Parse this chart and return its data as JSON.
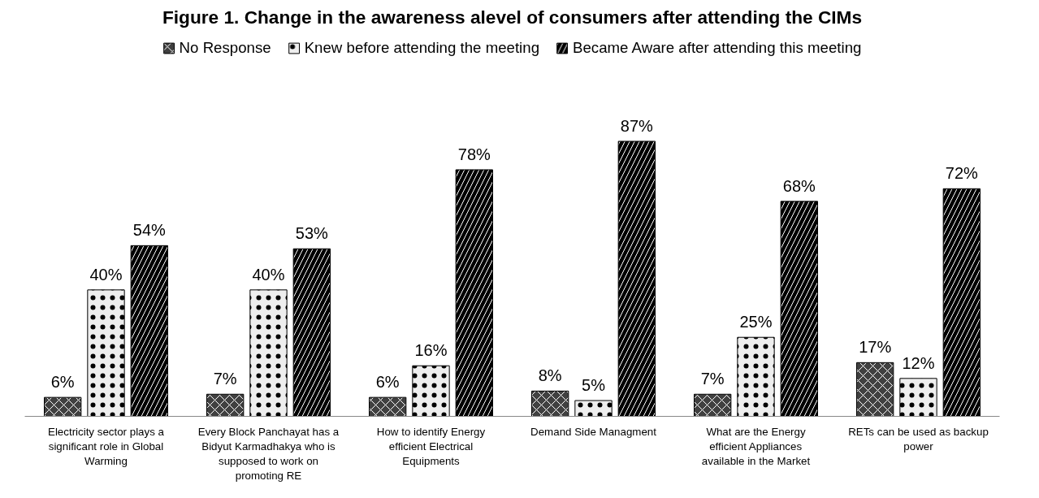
{
  "chart_data": {
    "type": "bar",
    "title": "Figure 1. Change in the awareness alevel of consumers after attending the CIMs",
    "categories": [
      "Electricity sector plays a significant role in Global Warming",
      "Every Block Panchayat has a Bidyut Karmadhakya who is supposed to work on promoting RE",
      "How to identify Energy efficient Electrical Equipments",
      "Demand Side Managment",
      "What are the Energy efficient Appliances available in the Market",
      "RETs can be used as backup power"
    ],
    "series": [
      {
        "name": "No Response",
        "color": "#404040",
        "values": [
          6,
          7,
          6,
          8,
          7,
          17
        ],
        "value_labels": [
          "6%",
          "7%",
          "6%",
          "8%",
          "7%",
          "17%"
        ]
      },
      {
        "name": "Knew before attending the meeting",
        "color": "#eeeeee",
        "values": [
          40,
          40,
          16,
          5,
          25,
          12
        ],
        "value_labels": [
          "40%",
          "40%",
          "16%",
          "5%",
          "25%",
          "12%"
        ]
      },
      {
        "name": "Became Aware after attending this meeting",
        "color": "#000000",
        "values": [
          54,
          53,
          78,
          87,
          68,
          72
        ],
        "value_labels": [
          "54%",
          "53%",
          "78%",
          "87%",
          "68%",
          "72%"
        ]
      }
    ],
    "tick_labels": "x",
    "legend": "top"
  }
}
